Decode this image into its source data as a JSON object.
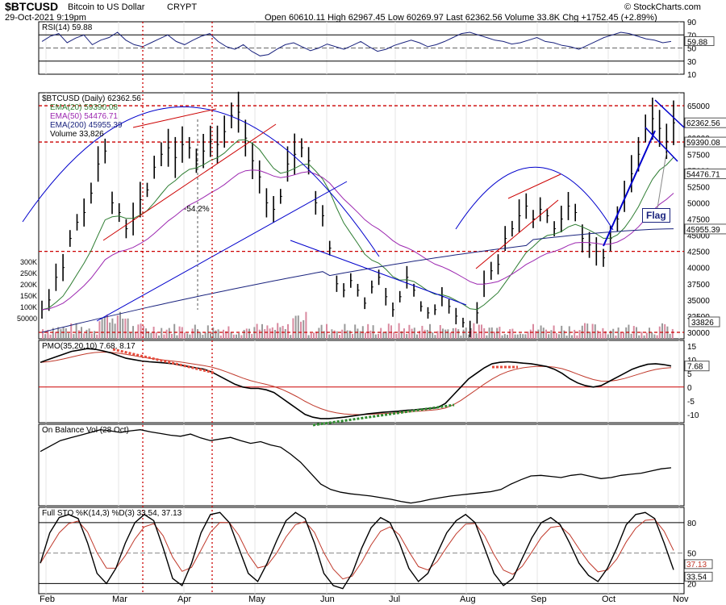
{
  "header": {
    "symbol": "$BTCUSD",
    "name": "Bitcoin to US Dollar",
    "exchange": "CRYPT",
    "date": "29-Oct-2021 9:19pm",
    "watermark": "© StockCharts.com",
    "ohlc": "Open 60610.11  High 62967.45  Low 60269.97  Last 62362.56  Volume 33.8K  Chg +1752.45 (+2.89%)"
  },
  "colors": {
    "price": "#000000",
    "ema20": "#2e7d32",
    "ema50": "#9c27b0",
    "ema200": "#1a237e",
    "red_line": "#cc0000",
    "blue_line": "#0000cc",
    "green_dots": "#2e8b2e",
    "volume_up": "#d98aa0",
    "volume_down": "#999999"
  },
  "x_axis": {
    "labels": [
      "Feb",
      "Mar",
      "Apr",
      "May",
      "Jun",
      "Jul",
      "Aug",
      "Sep",
      "Oct",
      "Nov"
    ]
  },
  "chart_data": [
    {
      "type": "line",
      "title": "RSI(14) 59.88",
      "y_ticks": [
        10,
        30,
        50,
        70,
        90
      ],
      "ylim": [
        10,
        90
      ],
      "last_value": "59.88",
      "values": [
        60,
        68,
        72,
        58,
        65,
        70,
        55,
        62,
        66,
        74,
        62,
        55,
        52,
        58,
        64,
        70,
        60,
        55,
        62,
        68,
        72,
        60,
        52,
        48,
        55,
        45,
        38,
        40,
        48,
        55,
        58,
        52,
        46,
        50,
        56,
        52,
        48,
        54,
        60,
        52,
        45,
        48,
        54,
        58,
        62,
        58,
        52,
        55,
        60,
        66,
        72,
        74,
        70,
        66,
        62,
        60,
        56,
        58,
        62,
        66,
        60,
        58,
        54,
        52,
        48,
        54,
        60,
        66,
        70,
        74,
        72,
        68,
        64,
        62,
        58,
        60
      ]
    },
    {
      "type": "line",
      "title": "$BTCUSD (Daily) 62362.56",
      "legend": [
        "EMA(20) 59390.08",
        "EMA(50) 54476.71",
        "EMA(200) 45955.39",
        "Volume 33,826"
      ],
      "y_ticks": [
        30000,
        32500,
        35000,
        37500,
        40000,
        42500,
        45000,
        47500,
        50000,
        52500,
        55000,
        57500,
        60000,
        62500,
        65000
      ],
      "ylim": [
        29000,
        67000
      ],
      "volume_ticks": [
        "300K",
        "250K",
        "200K",
        "150K",
        "100K",
        "50000"
      ],
      "price_flags": [
        "62362.56",
        "59390.08",
        "54476.71",
        "45955.39",
        "33826"
      ],
      "annotations": [
        "-54.2%",
        "Flag"
      ],
      "close": [
        33500,
        35000,
        38500,
        40000,
        44500,
        47000,
        48500,
        51500,
        56000,
        58000,
        50000,
        48500,
        46000,
        47500,
        50500,
        52000,
        55500,
        57500,
        58500,
        57000,
        59000,
        58500,
        56500,
        58000,
        59500,
        59000,
        61000,
        63500,
        64000,
        60000,
        56500,
        54000,
        50000,
        49000,
        51000,
        56000,
        57500,
        58500,
        56500,
        50000,
        48000,
        43000,
        37500,
        36500,
        38000,
        36500,
        34500,
        37000,
        38500,
        35500,
        33500,
        35500,
        38500,
        36500,
        34000,
        33000,
        33500,
        35500,
        34000,
        32500,
        31500,
        30500,
        33000,
        37500,
        39500,
        40500,
        44500,
        46000,
        48000,
        49500,
        47500,
        49000,
        48000,
        46000,
        47500,
        49500,
        48500,
        44500,
        43500,
        42500,
        41500,
        44500,
        47500,
        51000,
        54500,
        57500,
        61500,
        63000,
        61500,
        59500,
        62362
      ]
    },
    {
      "type": "line",
      "title": "PMO(35,20,10) 7.68, 8.17",
      "y_ticks": [
        -10,
        -5,
        0,
        5,
        10,
        15
      ],
      "ylim": [
        -13,
        17
      ],
      "last_value": "7.68",
      "values": [
        9,
        10,
        11,
        12,
        13,
        13.5,
        14,
        13.8,
        13.2,
        12.5,
        11.5,
        10.5,
        10,
        9.5,
        9.2,
        9,
        8.8,
        8.5,
        8,
        7.5,
        7,
        6.5,
        5.5,
        4,
        2.5,
        1,
        0,
        -0.5,
        -0.5,
        -1,
        -2,
        -4,
        -6,
        -8,
        -10,
        -11,
        -11.5,
        -11.5,
        -11.3,
        -11,
        -10.6,
        -10.2,
        -9.8,
        -9.5,
        -9.2,
        -9,
        -8.8,
        -8.5,
        -8.3,
        -8,
        -7.8,
        -7.5,
        -6,
        -3,
        0,
        3,
        5,
        7,
        8.5,
        9,
        9.2,
        9,
        8.7,
        8.5,
        8,
        7.5,
        6.5,
        5,
        3,
        1.5,
        0.5,
        0,
        0.5,
        2,
        3.5,
        5,
        6.5,
        7.5,
        8.3,
        8.5,
        8.2,
        7.68
      ]
    },
    {
      "type": "line",
      "title": "On Balance Vol (28 Oct)",
      "values": [
        10,
        11,
        12,
        12.5,
        13,
        13.5,
        14,
        13.8,
        13.5,
        13.8,
        14,
        13.6,
        13.3,
        13,
        12.8,
        13.2,
        12.5,
        12,
        12.3,
        12.6,
        12,
        11.5,
        11.8,
        11.2,
        10.8,
        9.5,
        8,
        6,
        4,
        3,
        2.5,
        2.2,
        2,
        1.8,
        1.5,
        1.2,
        0.8,
        0.5,
        0.8,
        1.2,
        1.5,
        1.8,
        2,
        2.2,
        2.4,
        2.6,
        3,
        4,
        4.8,
        5.5,
        5.6,
        5.4,
        5.2,
        5.6,
        5.8,
        5.4,
        5,
        5.2,
        5.6,
        5.8,
        6,
        6.4,
        6.8,
        7
      ]
    },
    {
      "type": "line",
      "title": "Full STO %K(14,3) %D(3) 33.54, 37.13",
      "y_ticks": [
        20,
        50,
        80
      ],
      "ylim": [
        10,
        95
      ],
      "last_values": [
        "37.13",
        "33.54"
      ],
      "values": [
        40,
        70,
        85,
        88,
        84,
        60,
        30,
        20,
        35,
        60,
        80,
        88,
        82,
        55,
        25,
        18,
        40,
        70,
        88,
        90,
        80,
        55,
        30,
        22,
        40,
        62,
        82,
        90,
        84,
        60,
        30,
        18,
        15,
        30,
        55,
        75,
        85,
        80,
        60,
        35,
        22,
        30,
        50,
        70,
        82,
        88,
        80,
        55,
        30,
        18,
        25,
        45,
        65,
        80,
        85,
        78,
        60,
        40,
        28,
        22,
        35,
        55,
        78,
        88,
        90,
        84,
        60,
        33.54
      ]
    }
  ]
}
